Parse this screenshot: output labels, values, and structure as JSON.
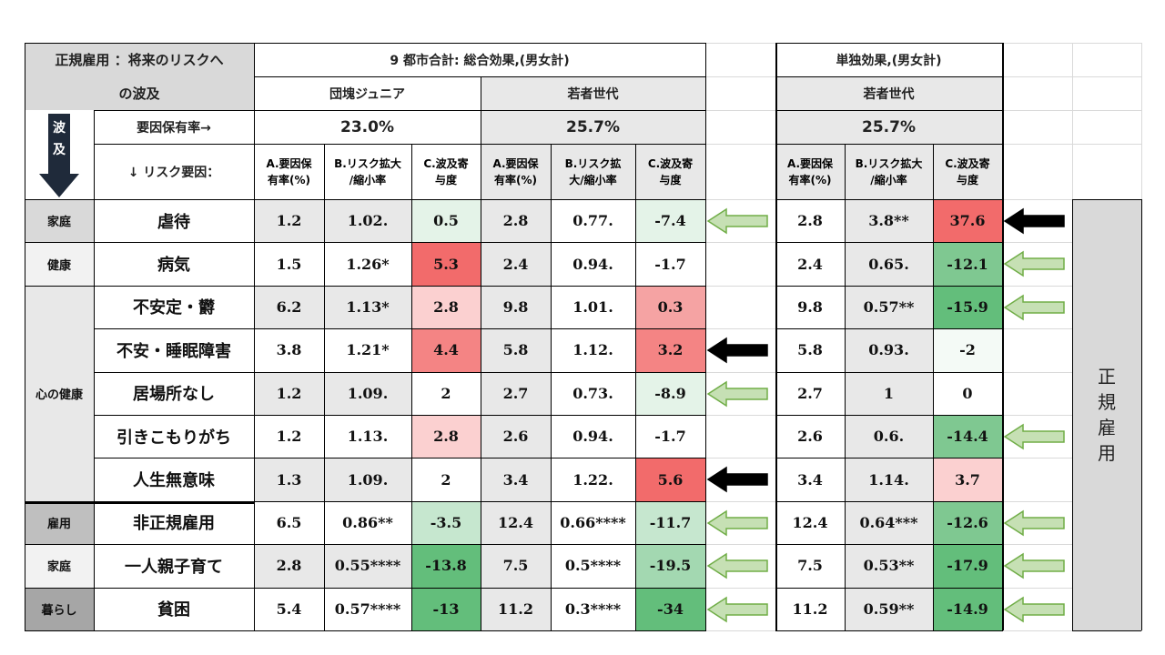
{
  "title_line1": "正規雇用 ：将来のリスクへ",
  "title_line2": "の波及",
  "group_total": "9 都市合計: 総合効果,(男女計)",
  "group_single": "単独効果,(男女計)",
  "sub_dankai": "団塊ジュニア",
  "sub_wakamono": "若者世代",
  "sub_wakamono2": "若者世代",
  "rate_label": "要因保有率→",
  "risk_label": "↓ リスク要因：",
  "ripple_label_1": "波",
  "ripple_label_2": "及",
  "rate_dankai": "23.0%",
  "rate_wakamono": "25.7%",
  "rate_wakamono2": "25.7%",
  "col_a": [
    "A.要因保",
    "有率(%)"
  ],
  "col_b": [
    "B.リスク拡大",
    "/縮小率"
  ],
  "col_c": [
    "C.波及寄",
    "与度"
  ],
  "col_b2": [
    "B.リスク拡",
    "大/縮小率"
  ],
  "right_label": "正規雇用",
  "categories": [
    {
      "label": "家庭",
      "rows": [
        0
      ]
    },
    {
      "label": "健康",
      "rows": [
        1
      ]
    },
    {
      "label": "心の健康",
      "rows": [
        2,
        3,
        4,
        5,
        6
      ]
    },
    {
      "label": "雇用",
      "rows": [
        7
      ]
    },
    {
      "label": "家庭",
      "rows": [
        8
      ]
    },
    {
      "label": "暮らし",
      "rows": [
        9
      ]
    }
  ],
  "rows": [
    {
      "factor": "虐待",
      "d": [
        "1.2",
        "1.02.",
        "0.5"
      ],
      "w": [
        "2.8",
        "0.77.",
        "-7.4"
      ],
      "s": [
        "2.8",
        "3.8**",
        "37.6"
      ],
      "arrow_mid": "green",
      "arrow_right": "black"
    },
    {
      "factor": "病気",
      "d": [
        "1.5",
        "1.26*",
        "5.3"
      ],
      "w": [
        "2.4",
        "0.94.",
        "-1.7"
      ],
      "s": [
        "2.4",
        "0.65.",
        "-12.1"
      ],
      "arrow_mid": "none",
      "arrow_right": "green"
    },
    {
      "factor": "不安定・欝",
      "d": [
        "6.2",
        "1.13*",
        "2.8"
      ],
      "w": [
        "9.8",
        "1.01.",
        "0.3"
      ],
      "s": [
        "9.8",
        "0.57**",
        "-15.9"
      ],
      "arrow_mid": "none",
      "arrow_right": "green"
    },
    {
      "factor": "不安・睡眠障害",
      "d": [
        "3.8",
        "1.21*",
        "4.4"
      ],
      "w": [
        "5.8",
        "1.12.",
        "3.2"
      ],
      "s": [
        "5.8",
        "0.93.",
        "-2"
      ],
      "arrow_mid": "black",
      "arrow_right": "none"
    },
    {
      "factor": "居場所なし",
      "d": [
        "1.2",
        "1.09.",
        "2"
      ],
      "w": [
        "2.7",
        "0.73.",
        "-8.9"
      ],
      "s": [
        "2.7",
        "1",
        "0"
      ],
      "arrow_mid": "green",
      "arrow_right": "none"
    },
    {
      "factor": "引きこもりがち",
      "d": [
        "1.2",
        "1.13.",
        "2.8"
      ],
      "w": [
        "2.6",
        "0.94.",
        "-1.7"
      ],
      "s": [
        "2.6",
        "0.6.",
        "-14.4"
      ],
      "arrow_mid": "none",
      "arrow_right": "green"
    },
    {
      "factor": "人生無意味",
      "d": [
        "1.3",
        "1.09.",
        "2"
      ],
      "w": [
        "3.4",
        "1.22.",
        "5.6"
      ],
      "s": [
        "3.4",
        "1.14.",
        "3.7"
      ],
      "arrow_mid": "black",
      "arrow_right": "none"
    },
    {
      "factor": "非正規雇用",
      "d": [
        "6.5",
        "0.86**",
        "-3.5"
      ],
      "w": [
        "12.4",
        "0.66****",
        "-11.7"
      ],
      "s": [
        "12.4",
        "0.64***",
        "-12.6"
      ],
      "arrow_mid": "green",
      "arrow_right": "green"
    },
    {
      "factor": "一人親子育て",
      "d": [
        "2.8",
        "0.55****",
        "-13.8"
      ],
      "w": [
        "7.5",
        "0.5****",
        "-19.5"
      ],
      "s": [
        "7.5",
        "0.53**",
        "-17.9"
      ],
      "arrow_mid": "green",
      "arrow_right": "green"
    },
    {
      "factor": "貧困",
      "d": [
        "5.4",
        "0.57****",
        "-13"
      ],
      "w": [
        "11.2",
        "0.3****",
        "-34"
      ],
      "s": [
        "11.2",
        "0.59**",
        "-14.9"
      ],
      "arrow_mid": "green",
      "arrow_right": "green"
    }
  ],
  "colors": {
    "gray": "#d9d9d9",
    "lightgray": "#e8e8e8",
    "white": "#ffffff",
    "red_strong": "#f26b6b",
    "red_mid": "#f5a3a3",
    "red_light": "#fbd0d0",
    "green_strong": "#63be7b",
    "green_mid": "#8fd09f",
    "green_light": "#c6e7cf",
    "green_pale": "#e4f3e8",
    "arrow_green": "#c6e0b4",
    "arrow_green_stroke": "#70ad47"
  },
  "cell_colors": {
    "d_c": [
      "#e4f3e8",
      "#f26b6b",
      "#fbd0d0",
      "#f48484",
      "#ffffff",
      "#fbd0d0",
      "#ffffff",
      "#c6e7cf",
      "#63be7b",
      "#63be7b"
    ],
    "w_c": [
      "#e4f3e8",
      "#ffffff",
      "#f5a3a3",
      "#f48484",
      "#e4f3e8",
      "#ffffff",
      "#f26b6b",
      "#c6e7cf",
      "#a3d8b1",
      "#63be7b"
    ],
    "s_c": [
      "#f26b6b",
      "#7fc891",
      "#63be7b",
      "#f4faf6",
      "#ffffff",
      "#7fc891",
      "#fbd0d0",
      "#7fc891",
      "#63be7b",
      "#63be7b"
    ]
  }
}
